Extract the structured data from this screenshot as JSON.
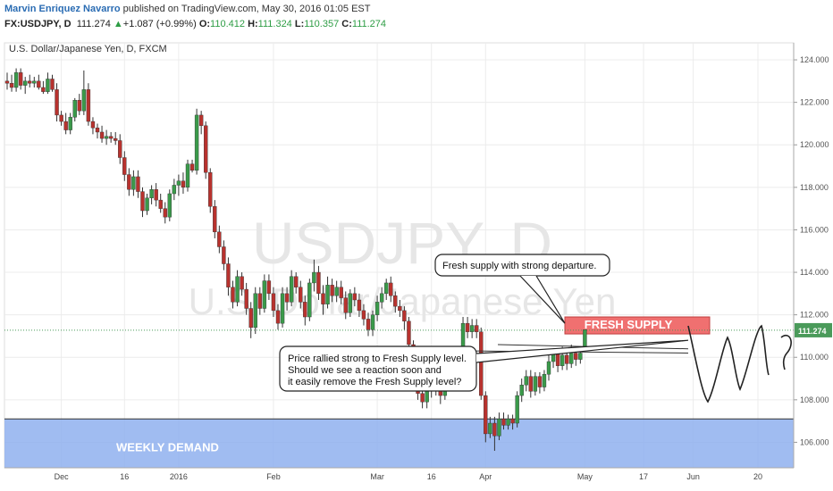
{
  "header": {
    "author": "Marvin Enriquez Navarro",
    "published_text": "published on TradingView.com, May 30, 2016 01:05 EST",
    "symbol": "FX:USDJPY, D",
    "last": "111.274",
    "arrow": "▲",
    "change": "+1.087 (+0.99%)",
    "o_label": "O:",
    "o_value": "110.412",
    "h_label": "H:",
    "h_value": "111.324",
    "l_label": "L:",
    "l_value": "110.357",
    "c_label": "C:",
    "c_value": "111.274"
  },
  "chart_data": {
    "type": "candlestick",
    "title": "U.S. Dollar/Japanese Yen, D, FXCM",
    "watermark_symbol": "USDJPY, D",
    "watermark_name": "U.S. Dollar/Japanese Yen",
    "ylim": [
      104.8,
      124.8
    ],
    "y_ticks": [
      "124.000",
      "122.000",
      "120.000",
      "118.000",
      "116.000",
      "114.000",
      "112.000",
      "110.000",
      "108.000",
      "106.000"
    ],
    "x_ticks": [
      "Dec",
      "16",
      "2016",
      "Feb",
      "Mar",
      "16",
      "Apr",
      "May",
      "17",
      "Jun",
      "20"
    ],
    "current_price_label": "111.274",
    "candles": [
      [
        123.0,
        123.4,
        122.6,
        122.9
      ],
      [
        122.9,
        123.3,
        122.5,
        122.7
      ],
      [
        122.7,
        123.6,
        122.5,
        123.4
      ],
      [
        123.4,
        123.6,
        122.6,
        122.8
      ],
      [
        122.8,
        123.2,
        122.4,
        123.0
      ],
      [
        123.0,
        123.3,
        122.7,
        122.9
      ],
      [
        122.9,
        123.2,
        122.7,
        123.0
      ],
      [
        123.0,
        123.3,
        122.6,
        122.7
      ],
      [
        122.7,
        123.0,
        122.4,
        122.5
      ],
      [
        122.5,
        123.4,
        122.4,
        123.1
      ],
      [
        123.1,
        123.3,
        122.5,
        122.6
      ],
      [
        122.6,
        122.9,
        121.1,
        121.4
      ],
      [
        121.4,
        121.6,
        120.9,
        121.1
      ],
      [
        121.1,
        121.5,
        120.5,
        120.7
      ],
      [
        120.7,
        121.5,
        120.5,
        121.3
      ],
      [
        121.3,
        122.2,
        121.1,
        122.1
      ],
      [
        122.1,
        122.4,
        121.4,
        121.6
      ],
      [
        121.6,
        123.5,
        121.4,
        122.6
      ],
      [
        122.6,
        122.9,
        120.9,
        121.1
      ],
      [
        121.1,
        121.3,
        120.5,
        120.8
      ],
      [
        120.8,
        121.0,
        120.3,
        120.6
      ],
      [
        120.6,
        120.9,
        120.1,
        120.3
      ],
      [
        120.3,
        120.7,
        120.0,
        120.4
      ],
      [
        120.4,
        120.6,
        120.1,
        120.3
      ],
      [
        120.3,
        120.6,
        120.0,
        120.2
      ],
      [
        120.2,
        120.5,
        119.1,
        119.4
      ],
      [
        119.4,
        119.7,
        118.3,
        118.6
      ],
      [
        118.6,
        118.9,
        117.6,
        117.9
      ],
      [
        117.9,
        118.8,
        117.6,
        118.5
      ],
      [
        118.5,
        118.8,
        117.5,
        117.8
      ],
      [
        117.8,
        118.0,
        116.6,
        116.9
      ],
      [
        116.9,
        117.7,
        116.7,
        117.5
      ],
      [
        117.5,
        118.1,
        117.2,
        117.9
      ],
      [
        117.9,
        118.2,
        117.1,
        117.4
      ],
      [
        117.4,
        117.7,
        116.8,
        117.0
      ],
      [
        117.0,
        117.3,
        116.3,
        116.6
      ],
      [
        116.6,
        117.9,
        116.4,
        117.7
      ],
      [
        117.7,
        118.4,
        117.4,
        118.1
      ],
      [
        118.1,
        118.6,
        117.6,
        118.3
      ],
      [
        118.3,
        118.7,
        117.7,
        118.0
      ],
      [
        118.0,
        119.3,
        117.8,
        119.1
      ],
      [
        119.1,
        119.3,
        118.7,
        118.8
      ],
      [
        118.8,
        121.7,
        118.6,
        121.4
      ],
      [
        121.4,
        121.6,
        120.5,
        120.9
      ],
      [
        120.9,
        121.1,
        118.4,
        118.7
      ],
      [
        118.7,
        118.9,
        116.8,
        117.1
      ],
      [
        117.1,
        117.4,
        115.6,
        115.9
      ],
      [
        115.9,
        116.2,
        114.9,
        115.2
      ],
      [
        115.2,
        115.5,
        114.1,
        114.4
      ],
      [
        114.4,
        114.7,
        112.9,
        113.3
      ],
      [
        113.3,
        113.6,
        112.3,
        112.6
      ],
      [
        112.6,
        114.1,
        112.4,
        113.8
      ],
      [
        113.8,
        114.0,
        112.9,
        113.2
      ],
      [
        113.2,
        113.5,
        112.0,
        112.3
      ],
      [
        112.3,
        112.6,
        110.9,
        111.4
      ],
      [
        111.4,
        113.3,
        111.1,
        113.0
      ],
      [
        113.0,
        113.3,
        112.0,
        112.3
      ],
      [
        112.3,
        113.9,
        112.1,
        113.6
      ],
      [
        113.6,
        113.9,
        112.7,
        113.0
      ],
      [
        113.0,
        113.3,
        111.9,
        112.2
      ],
      [
        112.2,
        112.5,
        111.3,
        111.6
      ],
      [
        111.6,
        113.3,
        111.4,
        113.0
      ],
      [
        113.0,
        113.3,
        112.2,
        112.6
      ],
      [
        112.6,
        114.1,
        112.4,
        113.8
      ],
      [
        113.8,
        114.0,
        113.0,
        113.3
      ],
      [
        113.3,
        113.6,
        112.3,
        112.6
      ],
      [
        112.6,
        112.9,
        111.5,
        111.9
      ],
      [
        111.9,
        113.7,
        111.7,
        113.5
      ],
      [
        113.5,
        114.6,
        113.1,
        114.0
      ],
      [
        114.0,
        114.3,
        112.7,
        113.0
      ],
      [
        113.0,
        113.4,
        112.0,
        112.5
      ],
      [
        112.5,
        113.8,
        112.3,
        113.4
      ],
      [
        113.4,
        113.7,
        112.6,
        112.9
      ],
      [
        112.9,
        113.6,
        112.6,
        113.3
      ],
      [
        113.3,
        113.6,
        112.5,
        112.8
      ],
      [
        112.8,
        113.1,
        111.8,
        112.1
      ],
      [
        112.1,
        113.2,
        111.9,
        113.0
      ],
      [
        113.0,
        113.3,
        112.4,
        112.7
      ],
      [
        112.7,
        113.0,
        111.9,
        112.2
      ],
      [
        112.2,
        112.5,
        111.5,
        111.8
      ],
      [
        111.8,
        112.1,
        111.0,
        111.3
      ],
      [
        111.3,
        112.2,
        111.0,
        112.0
      ],
      [
        112.0,
        112.9,
        111.7,
        112.6
      ],
      [
        112.6,
        113.3,
        112.3,
        113.0
      ],
      [
        113.0,
        113.7,
        112.7,
        113.5
      ],
      [
        113.5,
        113.8,
        112.6,
        112.9
      ],
      [
        112.9,
        113.1,
        112.1,
        112.4
      ],
      [
        112.4,
        112.7,
        111.9,
        112.2
      ],
      [
        112.2,
        112.4,
        111.3,
        111.7
      ],
      [
        111.7,
        111.9,
        110.3,
        110.6
      ],
      [
        110.6,
        110.8,
        109.4,
        109.7
      ],
      [
        109.7,
        109.9,
        108.0,
        108.3
      ],
      [
        108.3,
        108.5,
        107.6,
        107.9
      ],
      [
        107.9,
        108.6,
        107.6,
        108.4
      ],
      [
        108.4,
        109.3,
        108.1,
        109.0
      ],
      [
        109.0,
        109.3,
        108.2,
        108.5
      ],
      [
        108.5,
        108.8,
        107.8,
        108.2
      ],
      [
        108.2,
        109.5,
        108.0,
        109.2
      ],
      [
        109.2,
        109.8,
        108.9,
        109.5
      ],
      [
        109.5,
        110.0,
        109.0,
        109.3
      ],
      [
        109.3,
        110.5,
        109.1,
        110.3
      ],
      [
        110.3,
        111.9,
        110.1,
        111.6
      ],
      [
        111.6,
        111.9,
        110.9,
        111.2
      ],
      [
        111.2,
        111.8,
        110.9,
        111.5
      ],
      [
        111.5,
        111.8,
        110.9,
        111.2
      ],
      [
        111.2,
        111.4,
        108.0,
        108.2
      ],
      [
        108.2,
        108.4,
        106.0,
        106.4
      ],
      [
        106.4,
        107.2,
        106.2,
        106.9
      ],
      [
        106.9,
        107.2,
        105.6,
        106.3
      ],
      [
        106.3,
        107.4,
        106.1,
        107.1
      ],
      [
        107.1,
        107.4,
        106.6,
        106.8
      ],
      [
        106.8,
        107.3,
        106.6,
        107.1
      ],
      [
        107.1,
        107.3,
        106.6,
        106.9
      ],
      [
        106.9,
        108.4,
        106.7,
        108.2
      ],
      [
        108.2,
        109.0,
        107.9,
        108.7
      ],
      [
        108.7,
        109.4,
        108.4,
        109.1
      ],
      [
        109.1,
        109.4,
        108.1,
        108.4
      ],
      [
        108.4,
        109.3,
        108.2,
        109.1
      ],
      [
        109.1,
        109.3,
        108.3,
        108.6
      ],
      [
        108.6,
        109.4,
        108.4,
        109.2
      ],
      [
        109.2,
        110.1,
        108.9,
        109.8
      ],
      [
        109.8,
        110.4,
        109.5,
        110.2
      ],
      [
        110.2,
        110.4,
        109.3,
        109.6
      ],
      [
        109.6,
        110.5,
        109.4,
        110.1
      ],
      [
        110.1,
        110.4,
        109.4,
        109.7
      ],
      [
        109.7,
        110.6,
        109.5,
        110.2
      ],
      [
        110.2,
        110.5,
        109.6,
        109.9
      ],
      [
        109.9,
        110.4,
        109.7,
        110.2
      ],
      [
        110.4,
        111.3,
        110.3,
        111.3
      ]
    ],
    "annotations": [
      {
        "text": "Fresh supply with strong departure.",
        "anchor_price": 111.6
      },
      {
        "lines": [
          "Price rallied strong to Fresh Supply level.",
          "Should we see a reaction soon and",
          "it easily remove the Fresh Supply level?"
        ],
        "anchor_price": 110.8
      }
    ],
    "zones": [
      {
        "label": "FRESH SUPPLY",
        "from": 111.1,
        "to": 111.9,
        "color": "#f07070"
      },
      {
        "label": "WEEKLY DEMAND",
        "from": 104.8,
        "to": 107.1,
        "color": "#8fb0ef"
      }
    ],
    "colors": {
      "up": "#3a9a4a",
      "down": "#b8322e",
      "supply": "#f07070",
      "demand": "#8fb0ef",
      "last_price": "#4a9a5a"
    }
  }
}
